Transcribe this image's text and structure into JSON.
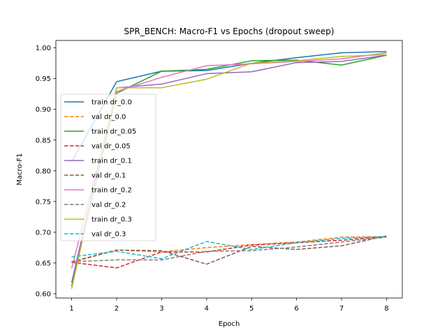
{
  "chart_data": {
    "type": "line",
    "title": "SPR_BENCH: Macro-F1 vs Epochs (dropout sweep)",
    "xlabel": "Epoch",
    "ylabel": "Macro-F1",
    "xlim": [
      0.65,
      8.35
    ],
    "ylim": [
      0.593,
      1.012
    ],
    "xticks": [
      1,
      2,
      3,
      4,
      5,
      6,
      7,
      8
    ],
    "yticks": [
      0.6,
      0.65,
      0.7,
      0.75,
      0.8,
      0.85,
      0.9,
      0.95,
      1.0
    ],
    "ytick_labels": [
      "0.60",
      "0.65",
      "0.70",
      "0.75",
      "0.80",
      "0.85",
      "0.90",
      "0.95",
      "1.00"
    ],
    "grid": false,
    "legend_position": "center-left",
    "x": [
      1,
      2,
      3,
      4,
      5,
      6,
      7,
      8
    ],
    "series": [
      {
        "name": "train dr_0.0",
        "color": "#1f77b4",
        "dash": "solid",
        "values": [
          0.815,
          0.945,
          0.962,
          0.963,
          0.975,
          0.984,
          0.992,
          0.994
        ]
      },
      {
        "name": "val dr_0.0",
        "color": "#ff7f0e",
        "dash": "dashed",
        "values": [
          0.651,
          0.671,
          0.668,
          0.675,
          0.68,
          0.684,
          0.692,
          0.693
        ]
      },
      {
        "name": "train dr_0.05",
        "color": "#2ca02c",
        "dash": "solid",
        "values": [
          0.612,
          0.926,
          0.962,
          0.965,
          0.979,
          0.98,
          0.972,
          0.988
        ]
      },
      {
        "name": "val dr_0.05",
        "color": "#d62728",
        "dash": "dashed",
        "values": [
          0.651,
          0.642,
          0.668,
          0.668,
          0.679,
          0.683,
          0.687,
          0.693
        ]
      },
      {
        "name": "train dr_0.1",
        "color": "#9467bd",
        "dash": "solid",
        "values": [
          0.618,
          0.935,
          0.941,
          0.958,
          0.961,
          0.976,
          0.978,
          0.988
        ]
      },
      {
        "name": "val dr_0.1",
        "color": "#8c564b",
        "dash": "dashed",
        "values": [
          0.652,
          0.671,
          0.67,
          0.648,
          0.677,
          0.672,
          0.678,
          0.694
        ]
      },
      {
        "name": "train dr_0.2",
        "color": "#e377c2",
        "dash": "solid",
        "values": [
          0.641,
          0.929,
          0.952,
          0.971,
          0.974,
          0.978,
          0.982,
          0.992
        ]
      },
      {
        "name": "val dr_0.2",
        "color": "#7f7f7f",
        "dash": "dashed",
        "values": [
          0.652,
          0.655,
          0.655,
          0.669,
          0.67,
          0.676,
          0.684,
          0.692
        ]
      },
      {
        "name": "train dr_0.3",
        "color": "#bcbd22",
        "dash": "solid",
        "values": [
          0.608,
          0.935,
          0.935,
          0.949,
          0.975,
          0.979,
          0.986,
          0.989
        ]
      },
      {
        "name": "val dr_0.3",
        "color": "#17becf",
        "dash": "dashed",
        "values": [
          0.66,
          0.669,
          0.657,
          0.685,
          0.672,
          0.683,
          0.69,
          0.693
        ]
      }
    ]
  }
}
